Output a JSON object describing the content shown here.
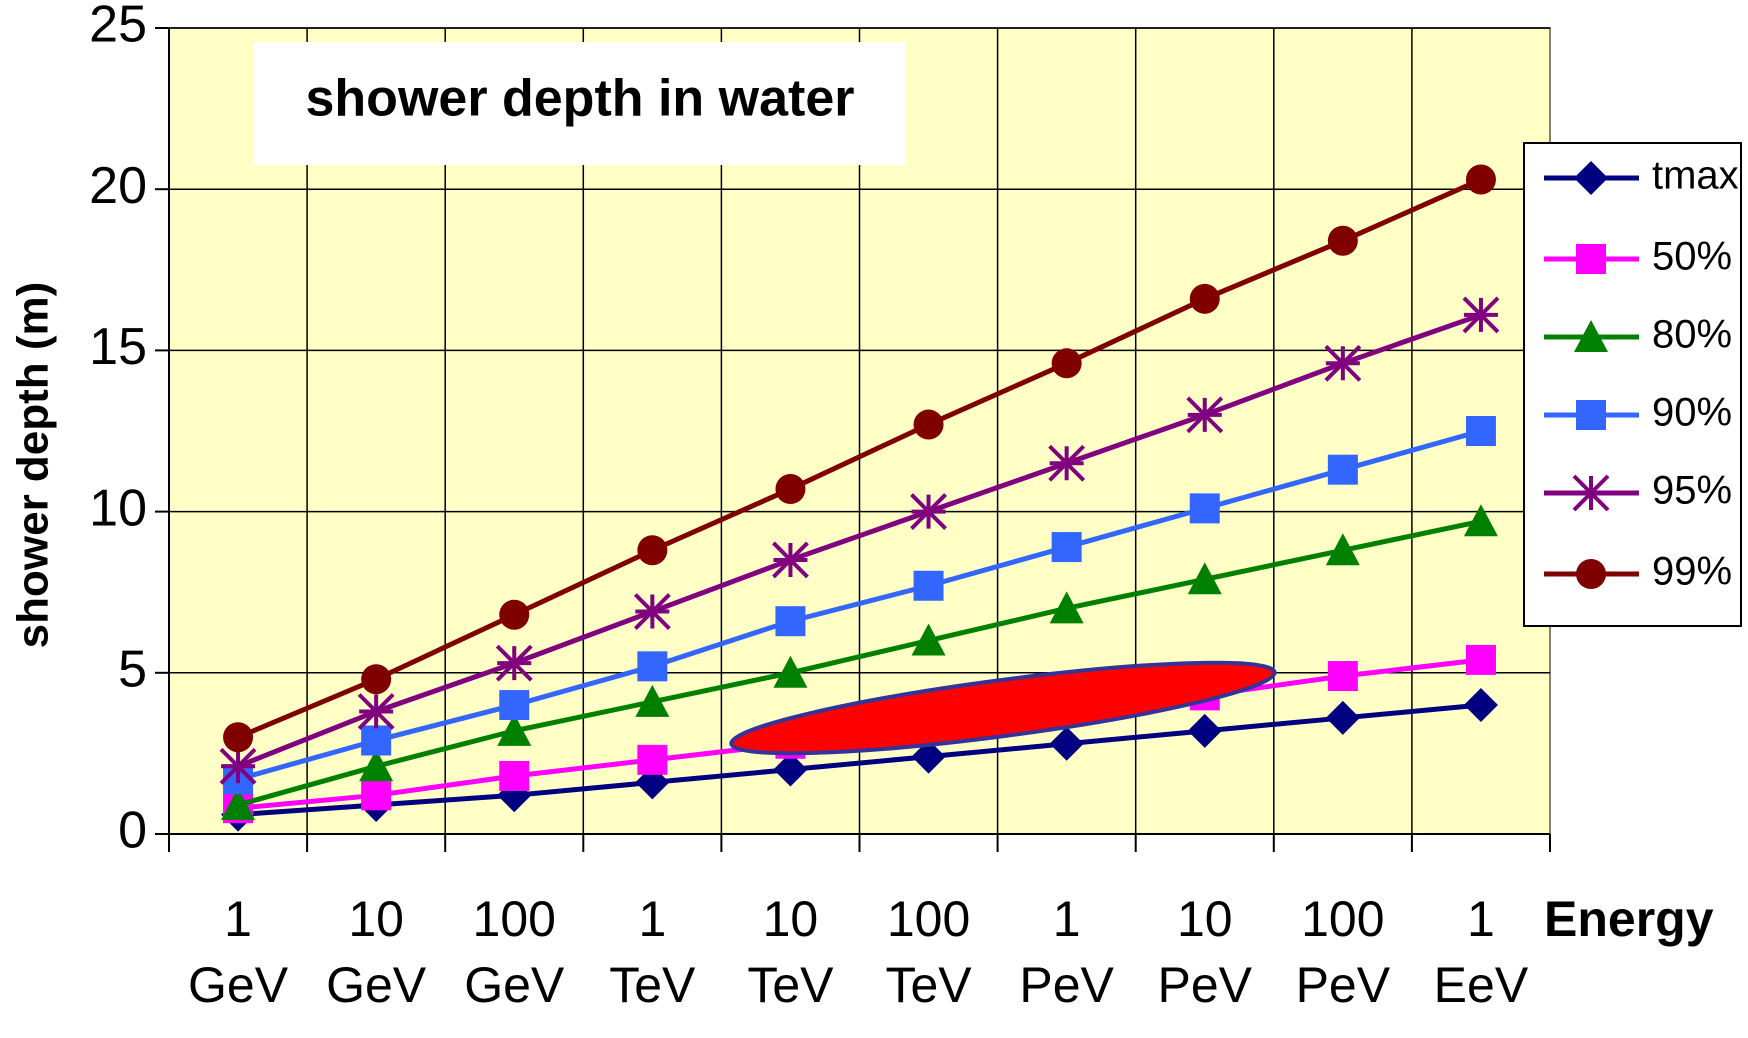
{
  "chart_data": {
    "type": "line",
    "title": "shower depth in water",
    "ylabel": "shower depth (m)",
    "xlabel": "Energy",
    "categories": [
      "1 GeV",
      "10 GeV",
      "100 GeV",
      "1 TeV",
      "10 TeV",
      "100 TeV",
      "1 PeV",
      "10 PeV",
      "100 PeV",
      "1 EeV"
    ],
    "ylim": [
      0,
      25
    ],
    "yticks": [
      0,
      5,
      10,
      15,
      20,
      25
    ],
    "grid": true,
    "legend": "right",
    "series": [
      {
        "name": "tmax",
        "color": "#000080",
        "marker": "diamond",
        "values": [
          0.6,
          0.9,
          1.2,
          1.6,
          2.0,
          2.4,
          2.8,
          3.2,
          3.6,
          4.0
        ]
      },
      {
        "name": "50%",
        "color": "#ff00ff",
        "marker": "square",
        "values": [
          0.8,
          1.2,
          1.8,
          2.3,
          2.8,
          3.3,
          3.8,
          4.3,
          4.9,
          5.4
        ]
      },
      {
        "name": "80%",
        "color": "#008000",
        "marker": "triangle",
        "values": [
          0.9,
          2.1,
          3.2,
          4.1,
          5.0,
          6.0,
          7.0,
          7.9,
          8.8,
          9.7
        ]
      },
      {
        "name": "90%",
        "color": "#3366ff",
        "marker": "square",
        "values": [
          1.7,
          2.9,
          4.0,
          5.2,
          6.6,
          7.7,
          8.9,
          10.1,
          11.3,
          12.5
        ]
      },
      {
        "name": "95%",
        "color": "#800080",
        "marker": "asterisk",
        "values": [
          2.1,
          3.8,
          5.3,
          6.9,
          8.5,
          10.0,
          11.5,
          13.0,
          14.6,
          16.1
        ]
      },
      {
        "name": "99%",
        "color": "#800000",
        "marker": "circle",
        "values": [
          3.0,
          4.8,
          6.8,
          8.8,
          10.7,
          12.7,
          14.6,
          16.6,
          18.4,
          20.3
        ]
      }
    ]
  }
}
